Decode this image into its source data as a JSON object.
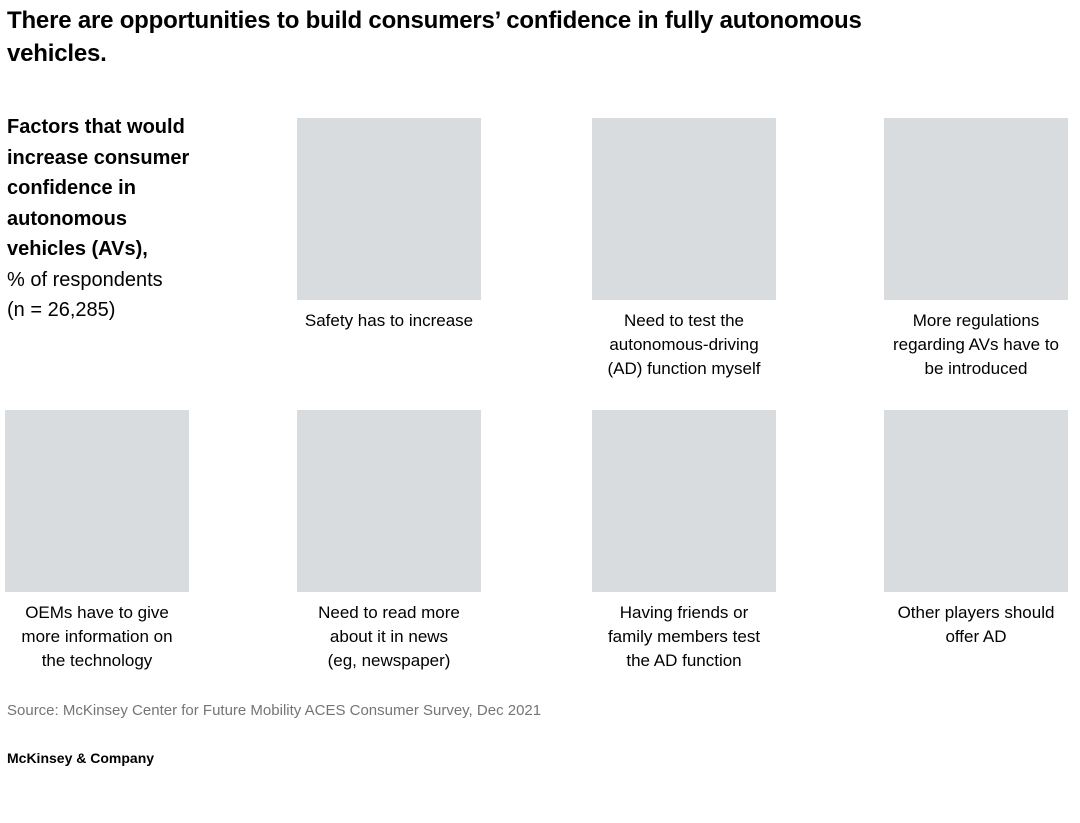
{
  "exhibit": {
    "title": "There are opportunities to build consumers’ confidence in fully autonomous\nvehicles.",
    "measure_label": "Factors that would\nincrease consumer\nconfidence in\nautonomous\nvehicles (AVs),",
    "measure_sublabel": "% of respondents\n(n = 26,285)",
    "cards": [
      {
        "caption": "Safety has to increase"
      },
      {
        "caption": "Need to test the\nautonomous-driving\n(AD) function myself"
      },
      {
        "caption": "More regulations\nregarding AVs have to\nbe introduced"
      },
      {
        "caption": "OEMs have to give\nmore information on\nthe technology"
      },
      {
        "caption": "Need to read more\nabout it in news\n(eg, newspaper)"
      },
      {
        "caption": "Having friends or\nfamily members test\nthe AD function"
      },
      {
        "caption": "Other players should\noffer AD"
      }
    ],
    "source": "Source: McKinsey Center for Future Mobility ACES Consumer Survey, Dec 2021",
    "brand": "McKinsey & Company",
    "colors": {
      "placeholder_box": "#d8dcde",
      "source_text": "#757575",
      "text": "#000000",
      "background": "#ffffff"
    }
  },
  "chart_data": {
    "type": "bar",
    "title": "Factors that would increase consumer confidence in autonomous vehicles (AVs), % of respondents (n = 26,285)",
    "categories": [
      "Safety has to increase",
      "Need to test the autonomous-driving (AD) function myself",
      "More regulations regarding AVs have to be introduced",
      "OEMs have to give more information on the technology",
      "Need to read more about it in news (eg, newspaper)",
      "Having friends or family members test the AD function",
      "Other players should offer AD"
    ],
    "values": [
      null,
      null,
      null,
      null,
      null,
      null,
      null
    ],
    "xlabel": "",
    "ylabel": "% of respondents",
    "note": "Chart graphics appear only as empty gray placeholder rectangles; no numeric values are visible in the screenshot."
  }
}
